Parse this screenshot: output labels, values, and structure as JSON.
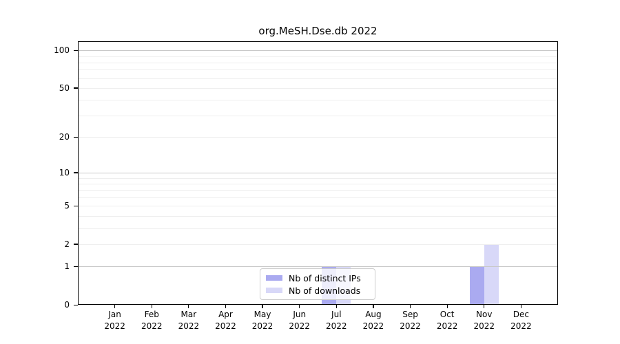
{
  "title": "org.MeSH.Dse.db 2022",
  "chart_data": {
    "type": "bar",
    "title": "org.MeSH.Dse.db 2022",
    "categories": [
      "Jan",
      "Feb",
      "Mar",
      "Apr",
      "May",
      "Jun",
      "Jul",
      "Aug",
      "Sep",
      "Oct",
      "Nov",
      "Dec"
    ],
    "category_year": "2022",
    "series": [
      {
        "name": "Nb of distinct IPs",
        "color": "#aaaaf0",
        "values": [
          0,
          0,
          0,
          0,
          0,
          0,
          1,
          0,
          0,
          0,
          1,
          0
        ]
      },
      {
        "name": "Nb of downloads",
        "color": "#d8d8f8",
        "values": [
          0,
          0,
          0,
          0,
          0,
          0,
          1,
          0,
          0,
          0,
          2,
          0
        ]
      }
    ],
    "yscale": "log1p",
    "ylim": [
      0,
      115
    ],
    "yticks": [
      0,
      1,
      2,
      5,
      10,
      20,
      50,
      100
    ],
    "ytick_major": [
      1,
      10,
      100
    ],
    "yminor": [
      3,
      4,
      6,
      7,
      8,
      9,
      30,
      40,
      60,
      70,
      80,
      90
    ],
    "grid": "horizontal",
    "legend_position": "bottom-center"
  },
  "legend": {
    "items": [
      {
        "label": "Nb of distinct IPs",
        "color": "#aaaaf0"
      },
      {
        "label": "Nb of downloads",
        "color": "#d8d8f8"
      }
    ]
  },
  "colors": {
    "frame": "#000000",
    "grid_major": "#c8c8c8",
    "grid_minor": "#eeeeee",
    "legend_border": "#cccccc",
    "bar_distinct_ips": "#aaaaf0",
    "bar_downloads": "#d8d8f8"
  }
}
